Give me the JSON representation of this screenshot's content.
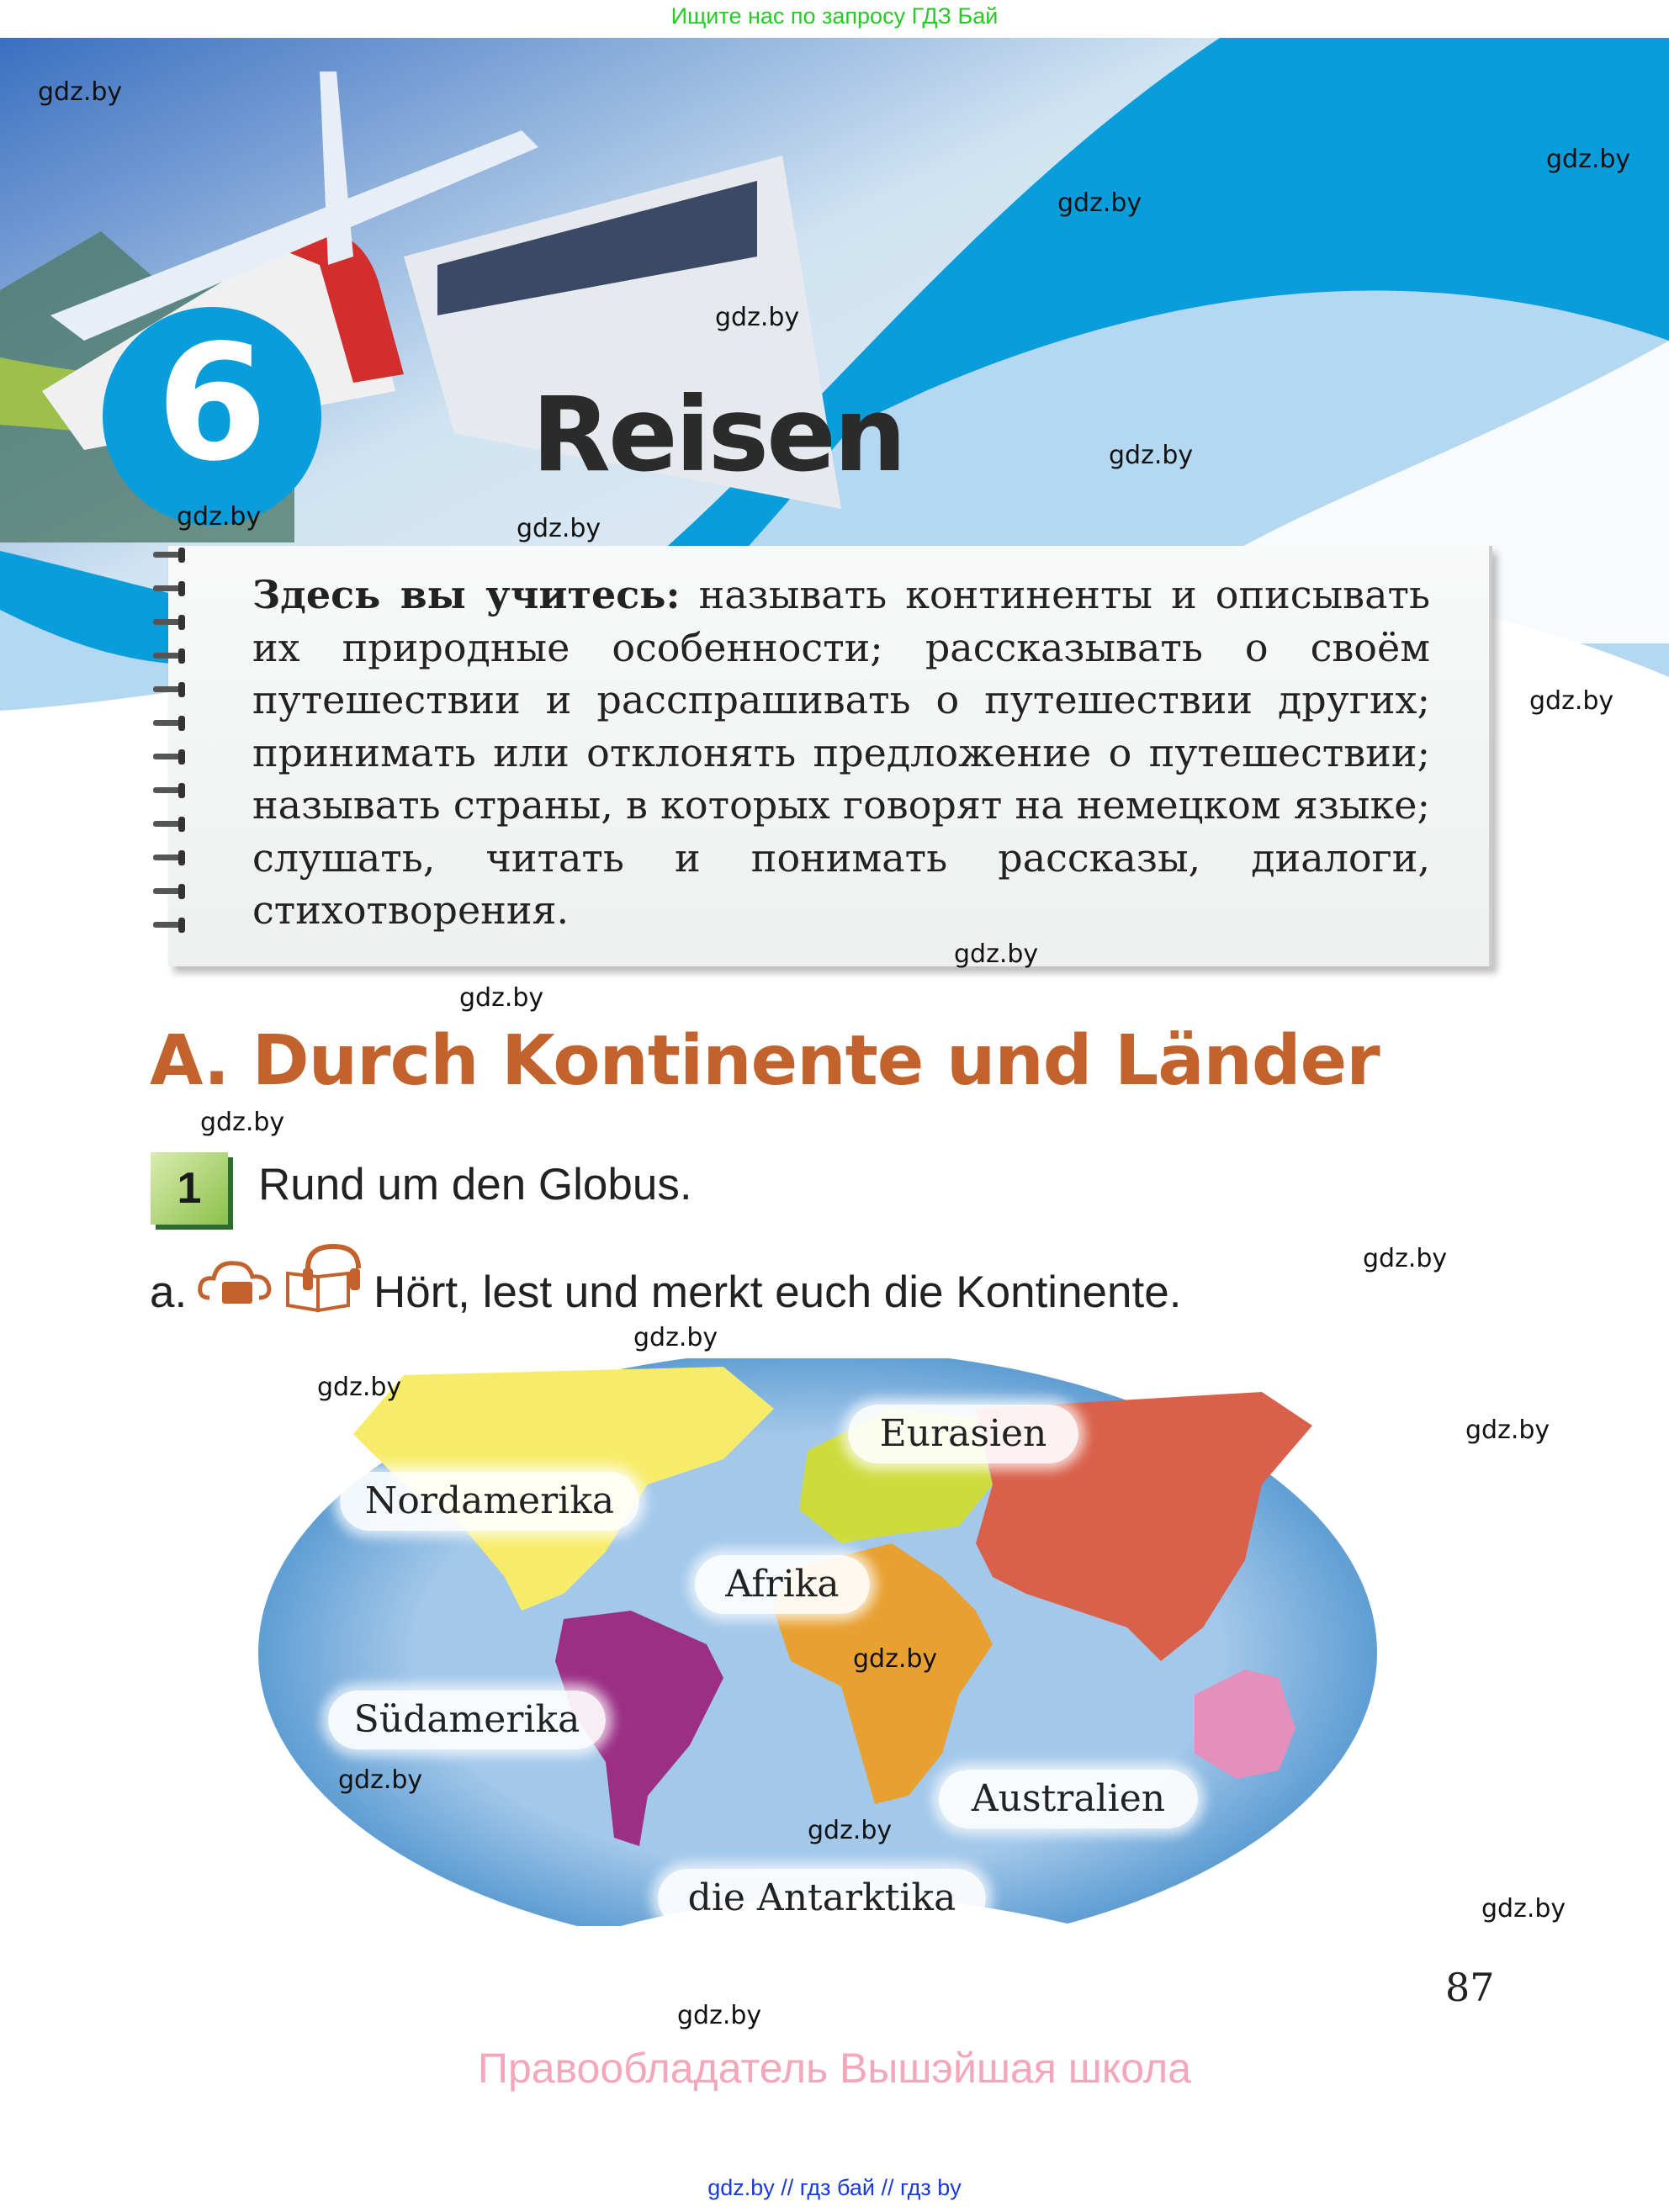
{
  "top_banner_text": "Ищите нас по запросу ГДЗ Бай",
  "chapter": {
    "number": "6",
    "title": "Reisen"
  },
  "goals": {
    "lead": "Здесь вы учитесь:",
    "text": " называть континенты и описывать их природные особенности; рассказывать о своём путешествии и расспрашивать о путешествии других; принимать или отклонять предложение о путешествии; называть страны, в которых говорят на немецком языке; слушать, читать и понимать рассказы, диалоги, стихотворения."
  },
  "section": {
    "heading": "A. Durch Kontinente und Länder"
  },
  "exercise": {
    "number": "1",
    "title": "Rund um den Globus.",
    "sub_label": "a.",
    "sub_icons": [
      "cloud-folder-icon",
      "book-headphones-icon"
    ],
    "sub_text": "Hört, lest und merkt euch die Kontinente."
  },
  "map": {
    "labels": {
      "nordamerika": "Nordamerika",
      "eurasien": "Eurasien",
      "afrika": "Afrika",
      "suedamerika": "Südamerika",
      "australien": "Australien",
      "antarktika": "die Antarktika"
    },
    "colors": {
      "ocean": "#9ec6ea",
      "north_america": "#f7ec6a",
      "south_america": "#9b2f86",
      "africa": "#e8a030",
      "europe": "#cddc3c",
      "asia": "#d9604a",
      "australia": "#e58fbd",
      "antarctica": "#ffffff"
    }
  },
  "page_number": "87",
  "watermark": "gdz.by",
  "rights_text": "Правообладатель Вышэйшая школа",
  "footer_text": "gdz.by  //  гдз бай  //  гдз by",
  "colors": {
    "accent_blue": "#0a9ddb",
    "heading_orange": "#c2622c",
    "badge_green": "#8cc04a"
  }
}
